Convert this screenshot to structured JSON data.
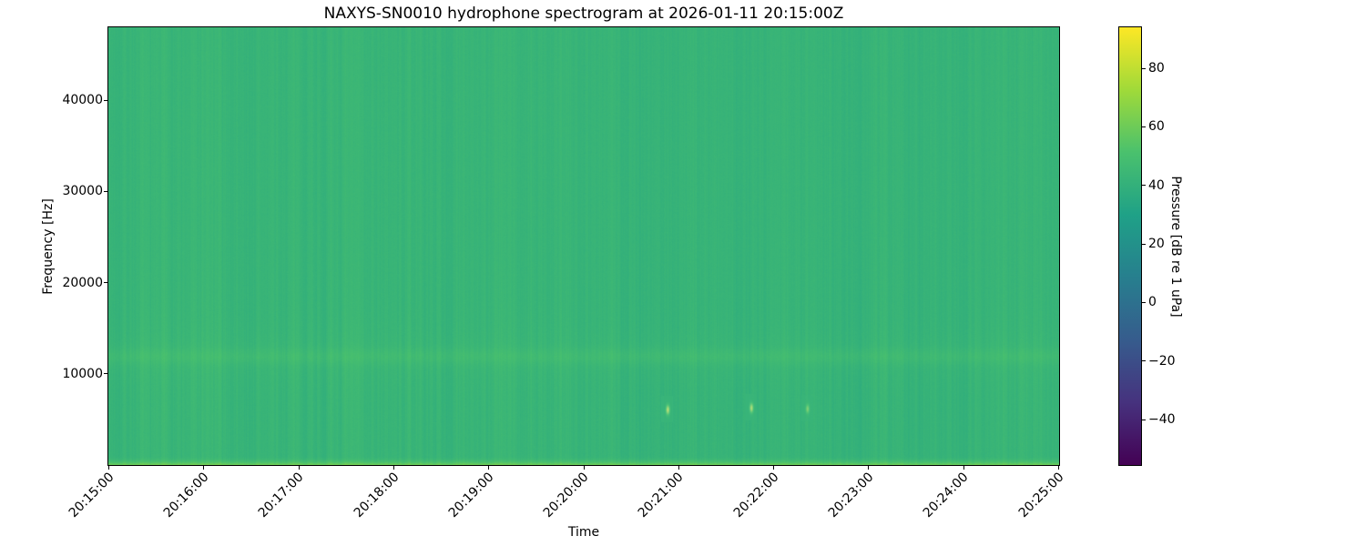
{
  "chart_data": {
    "type": "heatmap",
    "subtype": "spectrogram",
    "title": "NAXYS-SN0010 hydrophone spectrogram at 2026-01-11 20:15:00Z",
    "xlabel": "Time",
    "ylabel": "Frequency [Hz]",
    "x_tick_labels": [
      "20:15:00",
      "20:16:00",
      "20:17:00",
      "20:18:00",
      "20:19:00",
      "20:20:00",
      "20:21:00",
      "20:22:00",
      "20:23:00",
      "20:24:00",
      "20:25:00"
    ],
    "x_range": [
      "20:15:00",
      "20:25:00"
    ],
    "y_ticks_hz": [
      10000,
      20000,
      30000,
      40000
    ],
    "y_tick_labels": [
      "10000",
      "20000",
      "30000",
      "40000"
    ],
    "y_range_hz": [
      0,
      48000
    ],
    "grid": false,
    "legend": "none",
    "colorbar": {
      "label": "Pressure [dB re 1 uPa]",
      "ticks_db": [
        80,
        60,
        40,
        20,
        0,
        -20,
        -40
      ],
      "tick_labels": [
        "80",
        "60",
        "40",
        "20",
        "0",
        "−20",
        "−40"
      ],
      "range_db": [
        -55.5,
        94
      ],
      "colormap": "viridis",
      "stops": [
        "#440154",
        "#46327e",
        "#365c8d",
        "#277f8e",
        "#1fa187",
        "#4ac16d",
        "#a0da39",
        "#fde725"
      ]
    },
    "field": {
      "description": "Near-uniform broadband level around 42 dB (mid-green) with fine vertical time striations, a faint brighter band near 12 kHz, a strong narrow bright band below ~1 kHz along the bottom edge, and a few brief faint transient clicks near 6 kHz between 20:21 and 20:23.",
      "base_db": 42.5,
      "bands": [
        {
          "center_hz": 11900,
          "sigma_hz": 600,
          "boost_db": 3.2
        },
        {
          "center_hz": 11900,
          "sigma_hz": 1900,
          "boost_db": 1.1
        }
      ],
      "low_band": {
        "cutoff_hz": 1100,
        "boost_db": 19,
        "falloff_pow": 2.5
      },
      "transients": [
        {
          "time_frac": 0.588,
          "freq_hz": 6100,
          "peak_db": 80
        },
        {
          "time_frac": 0.676,
          "freq_hz": 6300,
          "peak_db": 77
        },
        {
          "time_frac": 0.735,
          "freq_hz": 6200,
          "peak_db": 66
        }
      ],
      "noise": {
        "striation_db": 1.5,
        "grain_db": 0.8
      }
    }
  }
}
